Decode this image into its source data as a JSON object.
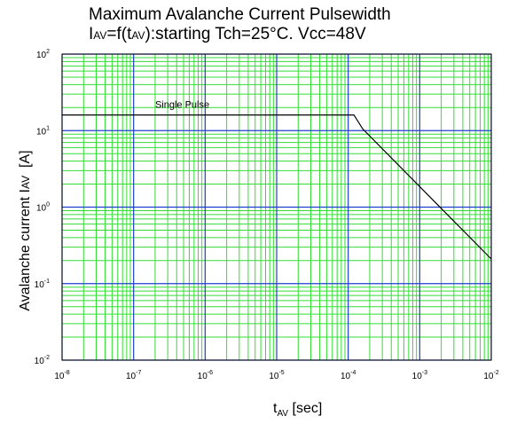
{
  "chart_data": {
    "type": "line",
    "title_line1": "Maximum Avalanche Current Pulsewidth",
    "title_line2": {
      "p1": "I",
      "p2": "AV",
      "p3": "=f(t",
      "p4": "AV",
      "p5": "):starting Tch=25°C. Vcc=48V"
    },
    "ylabel": {
      "main": "Avalanche current I",
      "sub": "AV",
      "unit": "  [A]"
    },
    "xlabel": {
      "t": "t",
      "sub": "AV",
      "unit": " [sec]"
    },
    "xscale": "log",
    "yscale": "log",
    "xlim": [
      1e-08,
      0.01
    ],
    "ylim": [
      0.01,
      100
    ],
    "x_tick_labels": [
      {
        "base": "10",
        "exp": "-8"
      },
      {
        "base": "10",
        "exp": "-7"
      },
      {
        "base": "10",
        "exp": "-6"
      },
      {
        "base": "10",
        "exp": "-5"
      },
      {
        "base": "10",
        "exp": "-4"
      },
      {
        "base": "10",
        "exp": "-3"
      },
      {
        "base": "10",
        "exp": "-2"
      }
    ],
    "y_tick_labels": [
      {
        "base": "10",
        "exp": "-2"
      },
      {
        "base": "10",
        "exp": "-1"
      },
      {
        "base": "10",
        "exp": "0"
      },
      {
        "base": "10",
        "exp": "1"
      },
      {
        "base": "10",
        "exp": "2"
      }
    ],
    "grid": true,
    "grid_major_color": "#1f3fd0",
    "grid_minor_color": "#33dd33",
    "series": [
      {
        "name": "Single Pulse",
        "color": "#000000",
        "x": [
          1e-08,
          0.00012,
          0.00016,
          0.01
        ],
        "y": [
          16,
          16,
          10.5,
          0.21
        ]
      }
    ],
    "annotations": [
      {
        "text": "Single Pulse",
        "x": 2e-07,
        "y": 20
      }
    ]
  }
}
